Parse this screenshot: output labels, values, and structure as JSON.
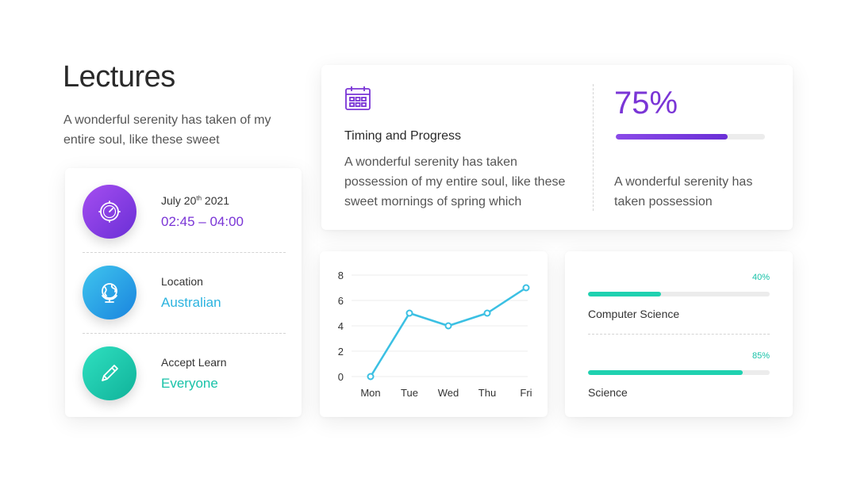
{
  "header": {
    "title": "Lectures",
    "subtitle": "A wonderful serenity has taken of my entire soul, like these sweet"
  },
  "info": {
    "items": [
      {
        "label": "July 20",
        "label_sup": "th",
        "label_suffix": " 2021",
        "value": "02:45 – 04:00",
        "icon": "stopwatch-icon",
        "color": "#7a35d6"
      },
      {
        "label": "Location",
        "value": "Australian",
        "icon": "globe-icon",
        "color": "#2bb3df"
      },
      {
        "label": "Accept Learn",
        "value": "Everyone",
        "icon": "pencil-icon",
        "color": "#18c2a8"
      }
    ]
  },
  "timing": {
    "icon": "calendar-icon",
    "title": "Timing and Progress",
    "description": "A wonderful serenity has taken possession of my entire soul, like these sweet mornings of spring which",
    "percent_label": "75%",
    "progress": 0.75,
    "side_description": "A wonderful serenity has taken possession"
  },
  "chart_data": {
    "type": "line",
    "categories": [
      "Mon",
      "Tue",
      "Wed",
      "Thu",
      "Fri"
    ],
    "values": [
      0,
      5,
      4,
      5,
      7
    ],
    "ylim": [
      0,
      8
    ],
    "yticks": [
      0,
      2,
      4,
      6,
      8
    ],
    "grid": true,
    "color": "#3bc0e3"
  },
  "subjects": [
    {
      "name": "Computer Science",
      "percent_label": "40%",
      "progress": 0.4
    },
    {
      "name": "Science",
      "percent_label": "85%",
      "progress": 0.85
    }
  ],
  "colors": {
    "purple": "#7a35d6",
    "blue": "#2bb3df",
    "teal": "#18c2a8"
  }
}
